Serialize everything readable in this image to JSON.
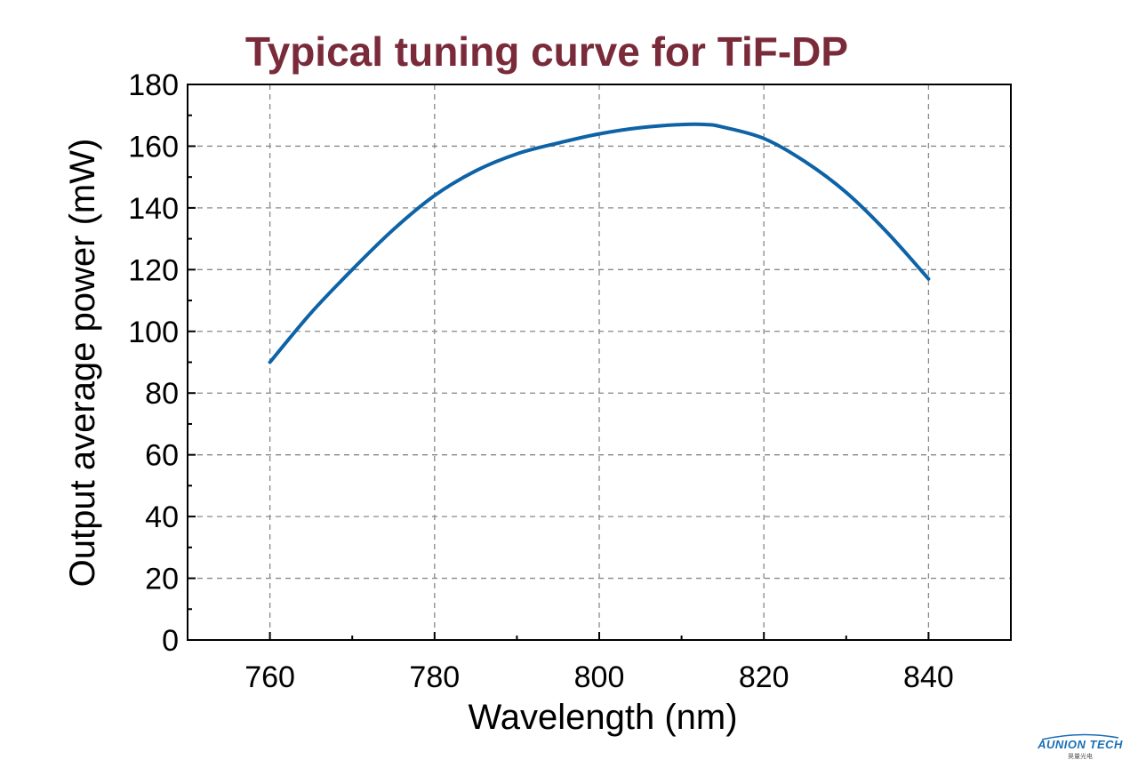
{
  "colors": {
    "title": "#7a2b3a",
    "line": "#0e63a6",
    "axis": "#000000",
    "grid": "#888888",
    "logo": "#1a6fb5"
  },
  "logo": {
    "brand": "AUNION TECH",
    "sub": "昊量光电"
  },
  "chart_data": {
    "type": "line",
    "title": "Typical tuning curve for TiF-DP",
    "xlabel": "Wavelength (nm)",
    "ylabel": "Output average power (mW)",
    "xlim": [
      750,
      850
    ],
    "ylim": [
      0,
      180
    ],
    "x_ticks": [
      760,
      780,
      800,
      820,
      840
    ],
    "y_ticks": [
      0,
      20,
      40,
      60,
      80,
      100,
      120,
      140,
      160,
      180
    ],
    "grid": true,
    "series": [
      {
        "x": [
          760,
          765,
          770,
          775,
          780,
          785,
          790,
          795,
          800,
          805,
          810,
          813,
          815,
          820,
          825,
          830,
          835,
          840
        ],
        "y": [
          90,
          106,
          120,
          133,
          144,
          152,
          157.5,
          161,
          164,
          166,
          167,
          167,
          166.2,
          162.5,
          155,
          145,
          132,
          117
        ]
      }
    ]
  }
}
